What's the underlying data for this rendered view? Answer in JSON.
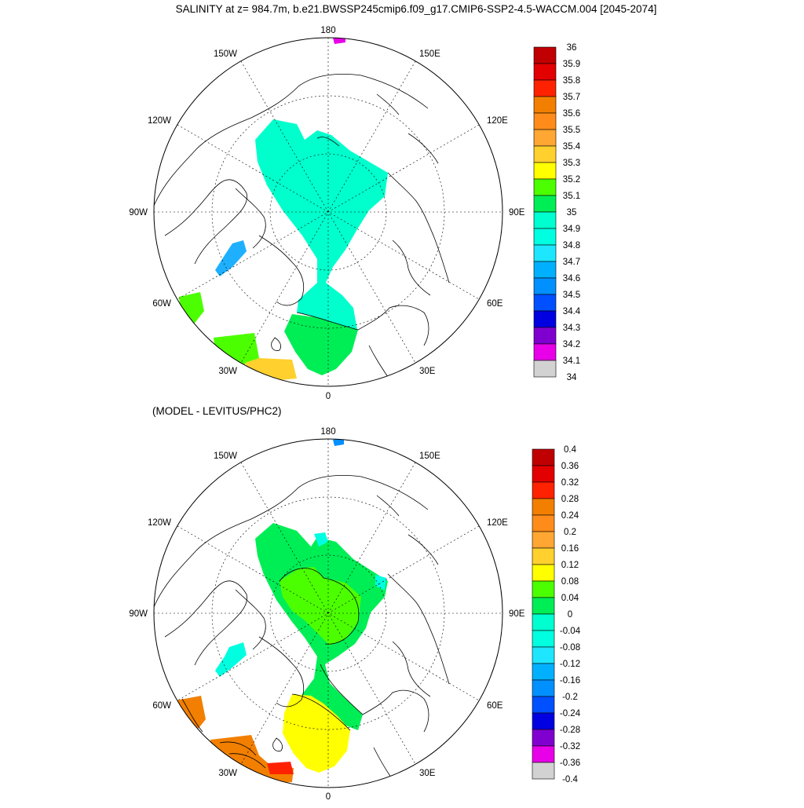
{
  "title": "SALINITY at z= 984.7m, b.e21.BWSSP245cmip6.f09_g17.CMIP6-SSP2-4.5-WACCM.004 [2045-2074]",
  "subtitle2": "(MODEL - LEVITUS/PHC2)",
  "lon_labels": {
    "top": "180",
    "bottom": "0",
    "left": "90W",
    "right": "90E",
    "upper_left": "150W",
    "upper_right": "150E",
    "mid_left_upper": "120W",
    "mid_right_upper": "120E",
    "mid_left_lower": "60W",
    "mid_right_lower": "60E",
    "lower_left": "30W",
    "lower_right": "30E"
  },
  "colorbar1": {
    "labels": [
      "36",
      "35.9",
      "35.8",
      "35.7",
      "35.6",
      "35.5",
      "35.4",
      "35.3",
      "35.2",
      "35.1",
      "35",
      "34.9",
      "34.8",
      "34.7",
      "34.6",
      "34.5",
      "34.4",
      "34.3",
      "34.2",
      "34.1",
      "34"
    ],
    "colors": [
      "#c00000",
      "#e30000",
      "#ff2200",
      "#f27f00",
      "#ff8c1a",
      "#ffa633",
      "#ffd02e",
      "#ffff00",
      "#4cff00",
      "#00ee55",
      "#00ffd0",
      "#00ffe0",
      "#1ee6ff",
      "#00b0ff",
      "#0090ff",
      "#0050ff",
      "#0000e0",
      "#8000d0",
      "#e800e8",
      "#d2d2d2",
      "#707070"
    ]
  },
  "colorbar2": {
    "labels": [
      "0.4",
      "0.36",
      "0.32",
      "0.28",
      "0.24",
      "0.2",
      "0.16",
      "0.12",
      "0.08",
      "0.04",
      "0",
      "-0.04",
      "-0.08",
      "-0.12",
      "-0.16",
      "-0.2",
      "-0.24",
      "-0.28",
      "-0.32",
      "-0.36",
      "-0.4"
    ],
    "colors": [
      "#c00000",
      "#e30000",
      "#ff2200",
      "#f27f00",
      "#ff8c1a",
      "#ffa633",
      "#ffd02e",
      "#ffff00",
      "#4cff00",
      "#00ee55",
      "#00ffd0",
      "#00ffe0",
      "#1ee6ff",
      "#00b0ff",
      "#0090ff",
      "#0050ff",
      "#0000e0",
      "#8000d0",
      "#e800e8",
      "#d2d2d2",
      "#707070"
    ]
  },
  "colors": {
    "m1_arctic": "#00ffcc",
    "m1_green": "#00ee55",
    "m1_yellow": "#ffd02e",
    "m1_labsea": "#4cff00",
    "m1_baffin": "#1eb0ff",
    "m1_bering": "#e800e8",
    "m2_green": "#00ee55",
    "m2_lime": "#4cff00",
    "m2_cyan": "#00ffe0",
    "m2_yellow": "#ffff00",
    "m2_orange": "#f27f00",
    "m2_red": "#ff2200",
    "m2_blue": "#0090ff"
  }
}
